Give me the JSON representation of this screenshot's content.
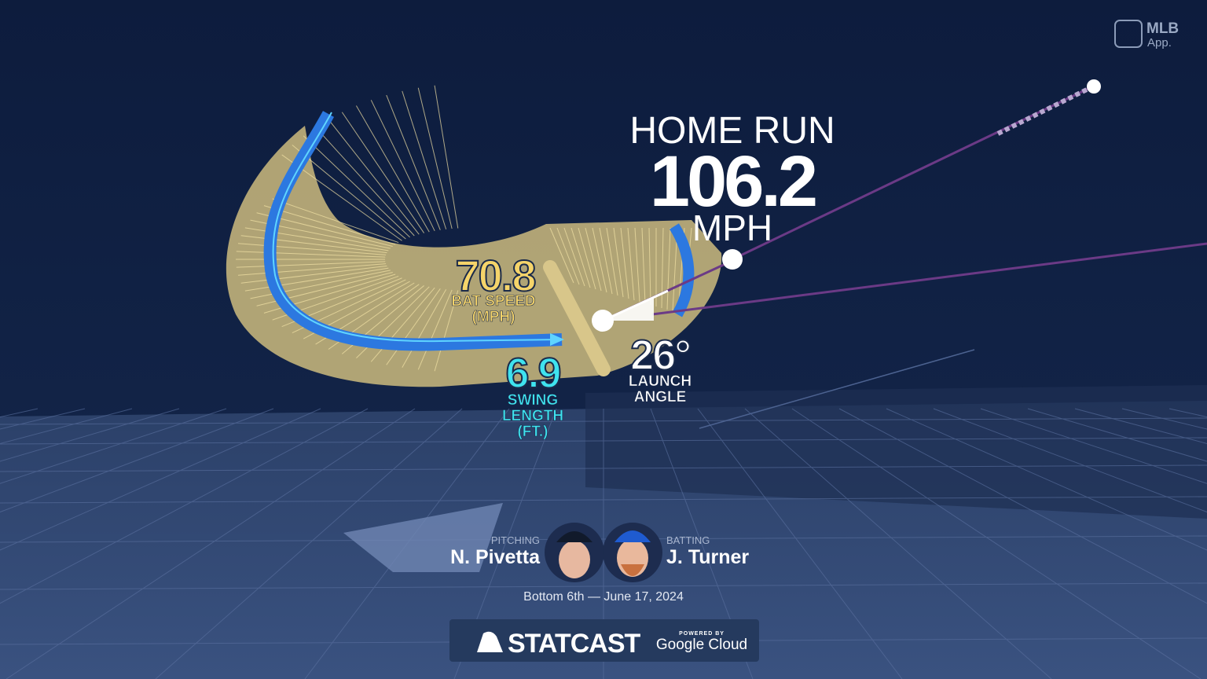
{
  "logo": {
    "line1": "MLB",
    "line2": "App."
  },
  "result": {
    "label": "HOME RUN",
    "exit_velocity": "106.2",
    "unit": "MPH"
  },
  "metrics": {
    "bat_speed": {
      "value": "70.8",
      "label_lines": [
        "BAT SPEED",
        "(MPH)"
      ]
    },
    "swing_length": {
      "value": "6.9",
      "label_lines": [
        "SWING",
        "LENGTH",
        "(FT.)"
      ]
    },
    "launch_angle": {
      "value": "26°",
      "label_lines": [
        "LAUNCH",
        "ANGLE"
      ]
    }
  },
  "matchup": {
    "pitcher": {
      "role": "PITCHING",
      "name": "N. Pivetta"
    },
    "batter": {
      "role": "BATTING",
      "name": "J. Turner"
    },
    "situation": "Bottom 6th — June 17, 2024"
  },
  "branding": {
    "name": "STATCAST",
    "powered_by": "POWERED BY",
    "sponsor": "Google Cloud"
  }
}
